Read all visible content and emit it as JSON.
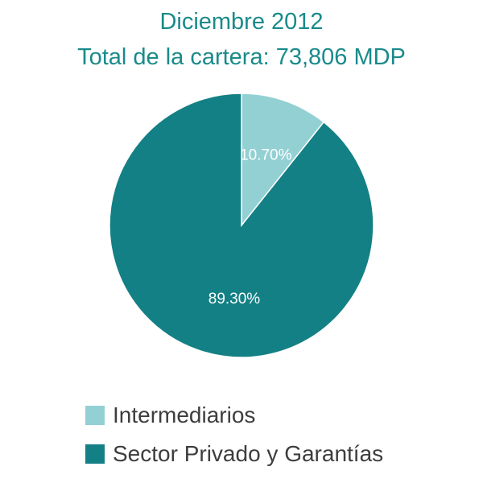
{
  "chart_data": {
    "type": "pie",
    "title": "Diciembre 2012",
    "subtitle": "Total de la cartera: 73,806 MDP",
    "slices": [
      {
        "label": "Intermediarios",
        "value": 10.7,
        "value_label": "10.70%",
        "color": "#93d0d4"
      },
      {
        "label": "Sector Privado y Garantías",
        "value": 89.3,
        "value_label": "89.30%",
        "color": "#138085"
      }
    ],
    "legend_position": "bottom-left",
    "data_label_color": "#ffffff"
  }
}
